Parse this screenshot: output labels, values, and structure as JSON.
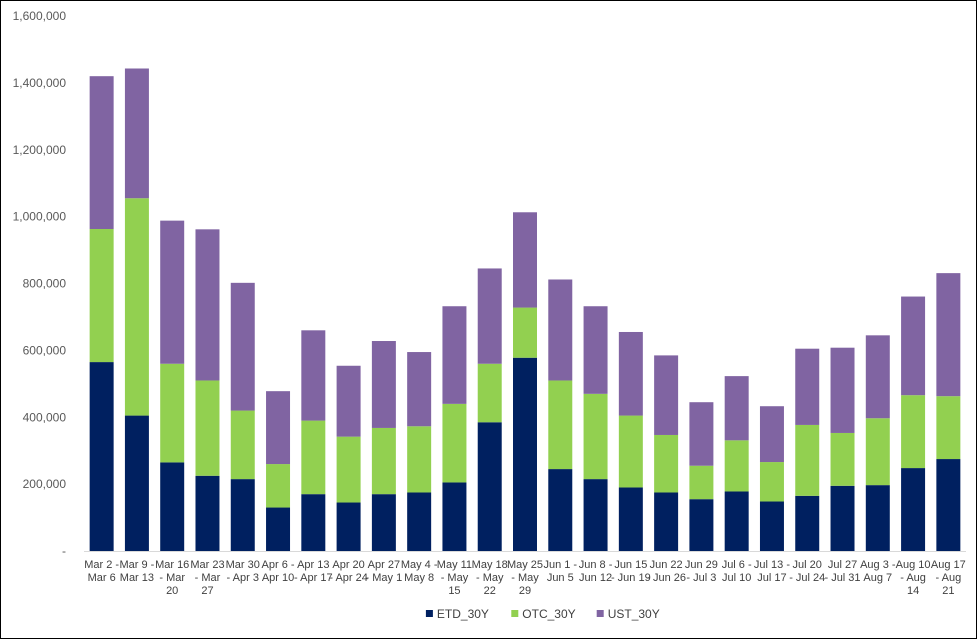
{
  "chart_data": {
    "type": "bar",
    "stacked": true,
    "categories": [
      [
        "Mar 2 -",
        "Mar 6"
      ],
      [
        "Mar 9 -",
        "Mar 13"
      ],
      [
        "Mar 16",
        "- Mar",
        "20"
      ],
      [
        "Mar 23",
        "- Mar",
        "27"
      ],
      [
        "Mar 30",
        "- Apr 3"
      ],
      [
        "Apr 6 -",
        "Apr 10"
      ],
      [
        "Apr 13",
        "- Apr 17"
      ],
      [
        "Apr 20",
        "- Apr 24"
      ],
      [
        "Apr 27",
        "- May 1"
      ],
      [
        "May 4 -",
        "May 8"
      ],
      [
        "May 11",
        "- May",
        "15"
      ],
      [
        "May 18",
        "- May",
        "22"
      ],
      [
        "May 25",
        "- May",
        "29"
      ],
      [
        "Jun 1 -",
        "Jun 5"
      ],
      [
        "Jun 8 -",
        "Jun 12"
      ],
      [
        "Jun 15",
        "- Jun 19"
      ],
      [
        "Jun 22",
        "- Jun 26"
      ],
      [
        "Jun 29",
        "- Jul 3"
      ],
      [
        "Jul 6 -",
        "Jul 10"
      ],
      [
        "Jul 13 -",
        "Jul 17"
      ],
      [
        "Jul 20",
        "- Jul 24"
      ],
      [
        "Jul 27",
        "- Jul 31"
      ],
      [
        "Aug 3 -",
        "Aug 7"
      ],
      [
        "Aug 10",
        "- Aug",
        "14"
      ],
      [
        "Aug 17",
        "- Aug",
        "21"
      ]
    ],
    "series": [
      {
        "name": "ETD_30Y",
        "color": "#002060",
        "values": [
          565000,
          405000,
          265000,
          225000,
          215000,
          130000,
          170000,
          145000,
          170000,
          175000,
          205000,
          385000,
          578000,
          245000,
          215000,
          190000,
          175000,
          155000,
          178000,
          148000,
          165000,
          195000,
          197000,
          248000,
          275000
        ]
      },
      {
        "name": "OTC_30Y",
        "color": "#92D050",
        "values": [
          398000,
          650000,
          295000,
          285000,
          205000,
          130000,
          220000,
          197000,
          198000,
          198000,
          235000,
          175000,
          150000,
          265000,
          255000,
          215000,
          172000,
          100000,
          153000,
          118000,
          212000,
          158000,
          200000,
          218000,
          188000
        ]
      },
      {
        "name": "UST_30Y",
        "color": "#8064A2",
        "values": [
          457000,
          388000,
          428000,
          452000,
          382000,
          218000,
          270000,
          212000,
          260000,
          222000,
          292000,
          285000,
          285000,
          302000,
          262000,
          250000,
          238000,
          190000,
          192000,
          167000,
          228000,
          255000,
          248000,
          295000,
          368000
        ]
      }
    ],
    "ylim": [
      0,
      1600000
    ],
    "yticks": [
      "-",
      "200,000",
      "400,000",
      "600,000",
      "800,000",
      "1,000,000",
      "1,200,000",
      "1,400,000",
      "1,600,000"
    ],
    "grid": false,
    "legend_position": "bottom"
  }
}
